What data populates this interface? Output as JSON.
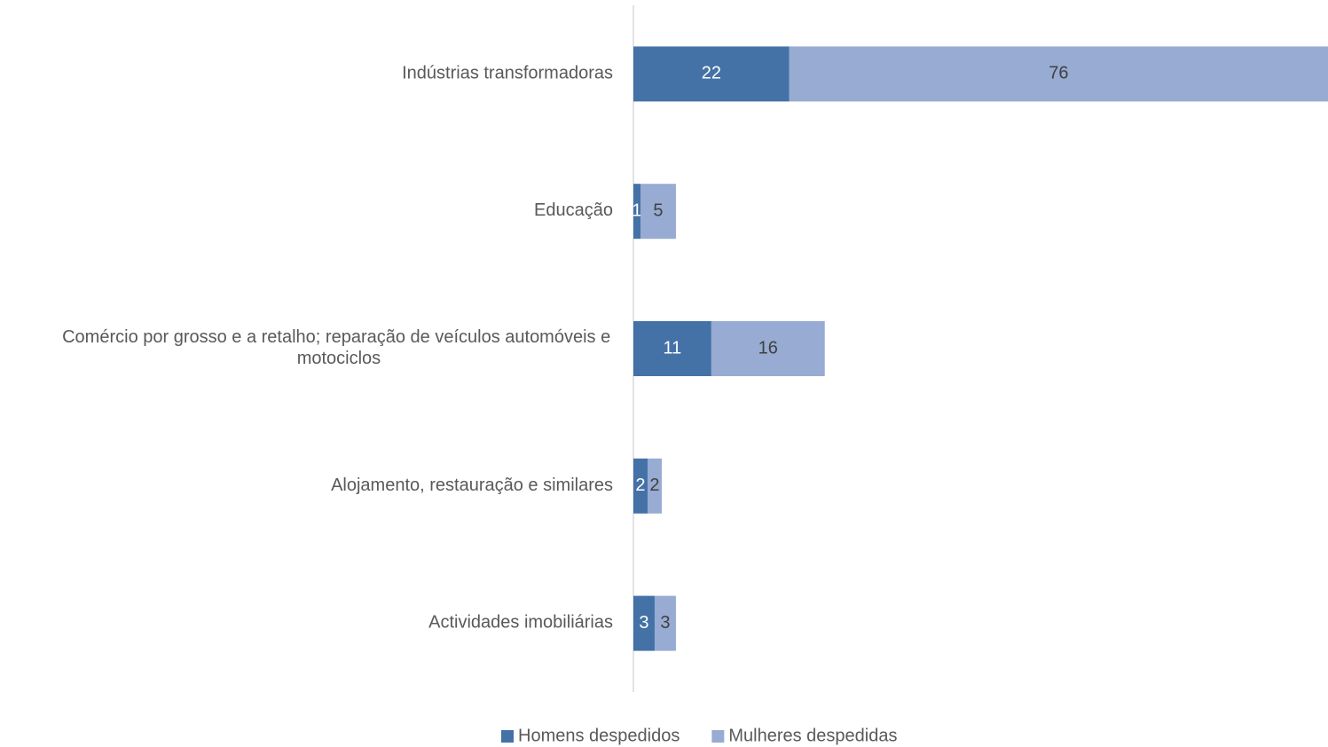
{
  "chart_data": {
    "type": "stacked-barh",
    "categories": [
      "Indústrias transformadoras",
      "Educação",
      "Comércio por grosso e a retalho; reparação de veículos automóveis e motociclos",
      "Alojamento, restauração e similares",
      "Actividades imobiliárias"
    ],
    "series": [
      {
        "name": "Homens despedidos",
        "color": "#4472a6",
        "values": [
          22,
          1,
          11,
          2,
          3
        ]
      },
      {
        "name": "Mulheres despedidas",
        "color": "#97abd3",
        "values": [
          76,
          5,
          16,
          2,
          3
        ]
      }
    ],
    "legend": "bottom"
  }
}
